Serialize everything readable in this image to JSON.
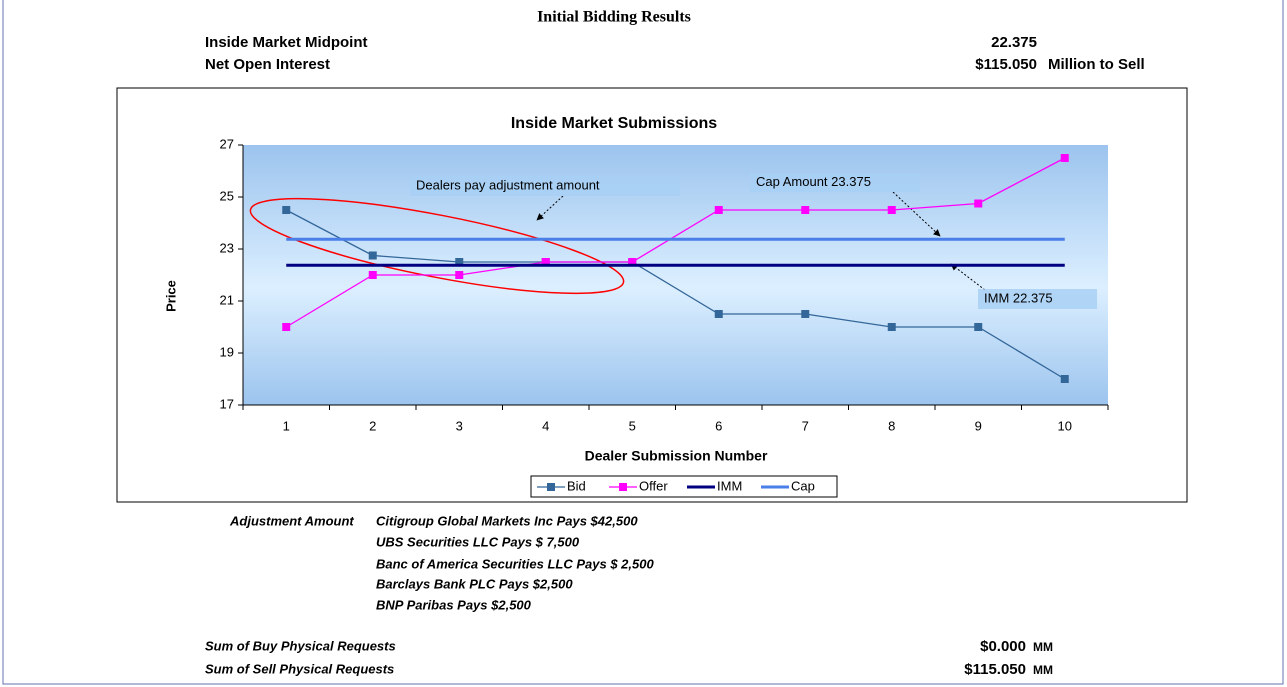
{
  "header": {
    "title": "Initial Bidding Results",
    "rows": [
      {
        "label": "Inside Market Midpoint",
        "value": "22.375"
      },
      {
        "label": "Net Open Interest",
        "value": "$115.050",
        "unit": "Million to Sell"
      }
    ]
  },
  "chart_data": {
    "type": "line",
    "title": "Inside Market Submissions",
    "xlabel": "Dealer Submission Number",
    "ylabel": "Price",
    "categories": [
      1,
      2,
      3,
      4,
      5,
      6,
      7,
      8,
      9,
      10
    ],
    "series": [
      {
        "name": "Bid",
        "color": "#336699",
        "marker": "square",
        "values": [
          24.5,
          22.75,
          22.5,
          22.5,
          22.5,
          20.5,
          20.5,
          20,
          20,
          18
        ]
      },
      {
        "name": "Offer",
        "color": "#ff00ff",
        "marker": "square",
        "values": [
          20,
          22,
          22,
          22.5,
          22.5,
          24.5,
          24.5,
          24.5,
          24.75,
          26.5
        ]
      },
      {
        "name": "IMM",
        "color": "#000080",
        "values": [
          22.375,
          22.375,
          22.375,
          22.375,
          22.375,
          22.375,
          22.375,
          22.375,
          22.375,
          22.375
        ]
      },
      {
        "name": "Cap",
        "color": "#4a7ee8",
        "values": [
          23.375,
          23.375,
          23.375,
          23.375,
          23.375,
          23.375,
          23.375,
          23.375,
          23.375,
          23.375
        ]
      }
    ],
    "ylim": [
      17,
      27
    ],
    "yticks": [
      17,
      19,
      21,
      23,
      25,
      27
    ],
    "legend": "bottom",
    "annotations": [
      "Dealers pay adjustment amount",
      "Cap Amount  23.375",
      "IMM 22.375"
    ]
  },
  "adjustment": {
    "label": "Adjustment Amount",
    "lines": [
      "Citigroup Global Markets Inc Pays $42,500",
      "UBS Securities LLC Pays $ 7,500",
      "Banc of America Securities LLC Pays $ 2,500",
      "Barclays Bank PLC Pays $2,500",
      "BNP Paribas Pays $2,500"
    ]
  },
  "sums": [
    {
      "label": "Sum of Buy Physical Requests",
      "value": "$0.000",
      "unit": "MM"
    },
    {
      "label": "Sum of Sell Physical Requests",
      "value": "$115.050",
      "unit": "MM"
    }
  ]
}
